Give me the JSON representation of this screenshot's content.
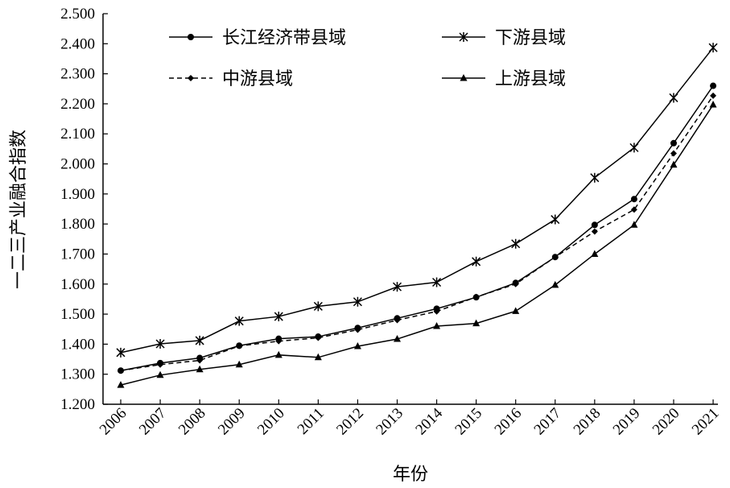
{
  "chart_data": {
    "type": "line",
    "xlabel": "年份",
    "ylabel": "一二三产业融合指数",
    "x": [
      "2006",
      "2007",
      "2008",
      "2009",
      "2010",
      "2011",
      "2012",
      "2013",
      "2014",
      "2015",
      "2016",
      "2017",
      "2018",
      "2019",
      "2020",
      "2021"
    ],
    "ylim": [
      1.2,
      2.5
    ],
    "yticks": [
      "1.200",
      "1.300",
      "1.400",
      "1.500",
      "1.600",
      "1.700",
      "1.800",
      "1.900",
      "2.000",
      "2.100",
      "2.200",
      "2.300",
      "2.400",
      "2.500"
    ],
    "grid": false,
    "legend_position": "top",
    "series": [
      {
        "name": "长江经济带县域",
        "marker": "circle",
        "dash": "solid",
        "values": [
          1.312,
          1.337,
          1.354,
          1.395,
          1.418,
          1.425,
          1.454,
          1.486,
          1.518,
          1.556,
          1.604,
          1.69,
          1.797,
          1.883,
          2.069,
          2.26
        ]
      },
      {
        "name": "下游县域",
        "marker": "asterisk",
        "dash": "solid",
        "values": [
          1.372,
          1.401,
          1.412,
          1.477,
          1.492,
          1.526,
          1.541,
          1.591,
          1.606,
          1.675,
          1.734,
          1.815,
          1.954,
          2.054,
          2.22,
          2.387
        ]
      },
      {
        "name": "中游县域",
        "marker": "diamond",
        "dash": "dashed",
        "values": [
          1.312,
          1.332,
          1.346,
          1.394,
          1.41,
          1.421,
          1.448,
          1.48,
          1.509,
          1.557,
          1.6,
          1.69,
          1.775,
          1.848,
          2.035,
          2.227
        ]
      },
      {
        "name": "上游县域",
        "marker": "triangle",
        "dash": "solid",
        "values": [
          1.264,
          1.297,
          1.316,
          1.332,
          1.364,
          1.356,
          1.393,
          1.417,
          1.46,
          1.469,
          1.51,
          1.597,
          1.7,
          1.797,
          1.997,
          2.197
        ]
      }
    ]
  }
}
